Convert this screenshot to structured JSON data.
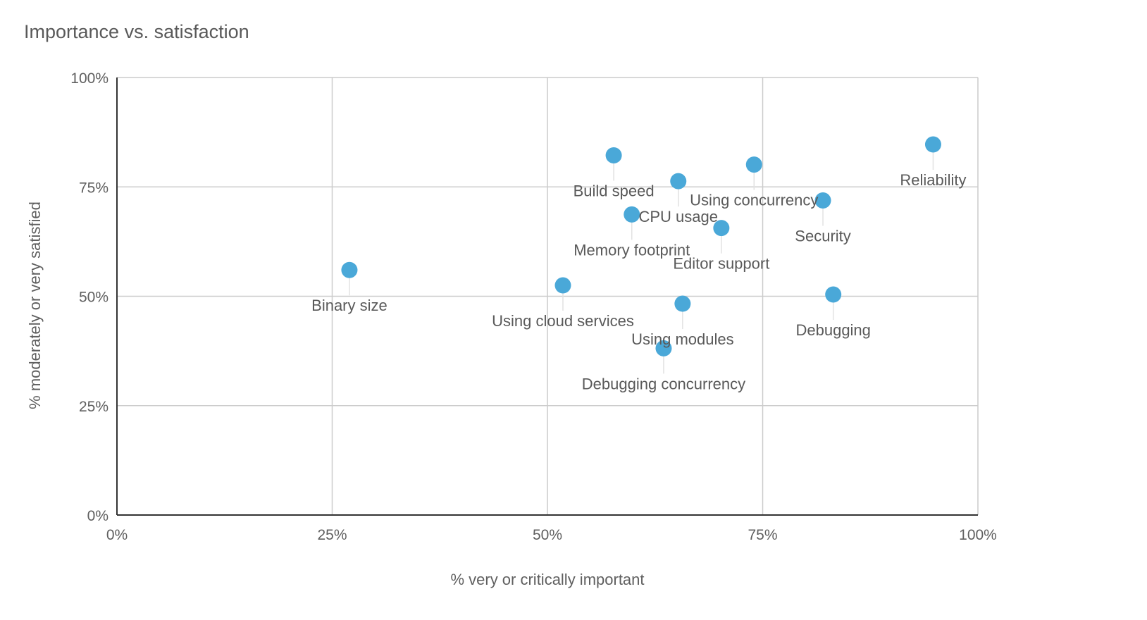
{
  "chart_data": {
    "type": "scatter",
    "title": "Importance vs. satisfaction",
    "xlabel": "% very or critically important",
    "ylabel": "% moderately or very satisfied",
    "xlim": [
      0,
      100
    ],
    "ylim": [
      0,
      100
    ],
    "x_ticks": [
      "0%",
      "25%",
      "50%",
      "75%",
      "100%"
    ],
    "y_ticks": [
      "0%",
      "25%",
      "50%",
      "75%",
      "100%"
    ],
    "grid": true,
    "point_color": "#4aa8d8",
    "points": [
      {
        "label": "Binary size",
        "x": 27,
        "y": 56
      },
      {
        "label": "Using cloud services",
        "x": 51.8,
        "y": 52.5
      },
      {
        "label": "Build speed",
        "x": 57.7,
        "y": 82.2
      },
      {
        "label": "Memory footprint",
        "x": 59.8,
        "y": 68.7
      },
      {
        "label": "Debugging concurrency",
        "x": 63.5,
        "y": 38.1
      },
      {
        "label": "CPU usage",
        "x": 65.2,
        "y": 76.3
      },
      {
        "label": "Using modules",
        "x": 65.7,
        "y": 48.3
      },
      {
        "label": "Editor support",
        "x": 70.2,
        "y": 65.6
      },
      {
        "label": "Using concurrency",
        "x": 74,
        "y": 80.1
      },
      {
        "label": "Security",
        "x": 82,
        "y": 71.9
      },
      {
        "label": "Debugging",
        "x": 83.2,
        "y": 50.4
      },
      {
        "label": "Reliability",
        "x": 94.8,
        "y": 84.7
      }
    ]
  }
}
